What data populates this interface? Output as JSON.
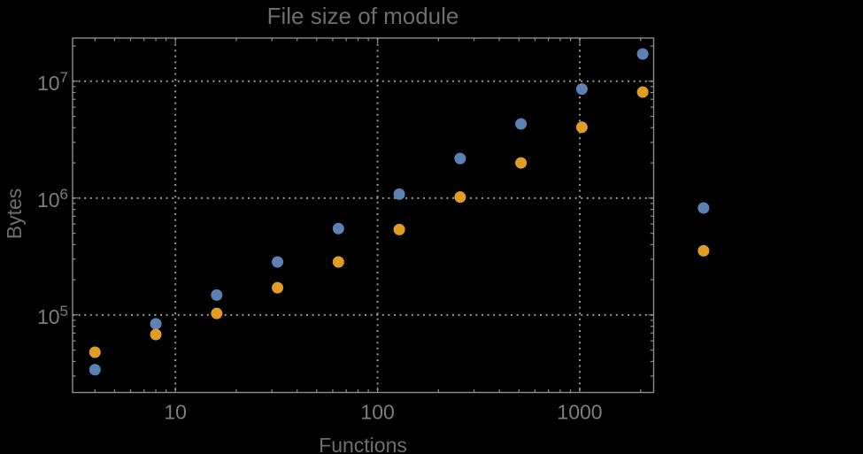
{
  "colors": {
    "background": "#000000",
    "frame": "#8c8c8c",
    "grid": "#979797",
    "tick": "#8c8c8c",
    "tick_label": "#7d7d7d",
    "title": "#6e6e6e",
    "axis_label": "#6e6e6e",
    "series_blue": "#5E81B5",
    "series_orange": "#E19C24"
  },
  "chart_data": {
    "type": "scatter",
    "title": "File size of module",
    "xlabel": "Functions",
    "ylabel": "Bytes",
    "x_scale": "log",
    "y_scale": "log",
    "xlim": [
      3.1,
      2320
    ],
    "ylim": [
      21700,
      23400000
    ],
    "grid": "dotted gray lines at decade positions, frame on all four sides with inward log ticks",
    "legend": "none",
    "x_major_ticks": [
      {
        "value": 10,
        "label": "10"
      },
      {
        "value": 100,
        "label": "100"
      },
      {
        "value": 1000,
        "label": "1000"
      }
    ],
    "y_major_ticks": [
      {
        "value": 100000,
        "base": "10",
        "exponent": "5"
      },
      {
        "value": 1000000,
        "base": "10",
        "exponent": "6"
      },
      {
        "value": 10000000,
        "base": "10",
        "exponent": "7"
      }
    ],
    "categories": [
      4,
      8,
      16,
      32,
      64,
      128,
      256,
      512,
      1024,
      2048,
      4096
    ],
    "series": [
      {
        "name": "series-1-blue",
        "color": "#5E81B5",
        "x": [
          4,
          8,
          16,
          32,
          64,
          128,
          256,
          512,
          1024,
          2048,
          4096
        ],
        "y": [
          34000,
          84000,
          148000,
          284000,
          548000,
          1080000,
          2180000,
          4310000,
          8570000,
          17100000,
          823000
        ]
      },
      {
        "name": "series-2-orange",
        "color": "#E19C24",
        "x": [
          4,
          8,
          16,
          32,
          64,
          128,
          256,
          512,
          1024,
          2048,
          4096
        ],
        "y": [
          48000,
          68000,
          103000,
          171000,
          284000,
          538000,
          1020000,
          2000000,
          4040000,
          8070000,
          354000
        ]
      }
    ],
    "note": "points at x=4096 lie outside (right of) the plot frame; no clipping applied"
  }
}
